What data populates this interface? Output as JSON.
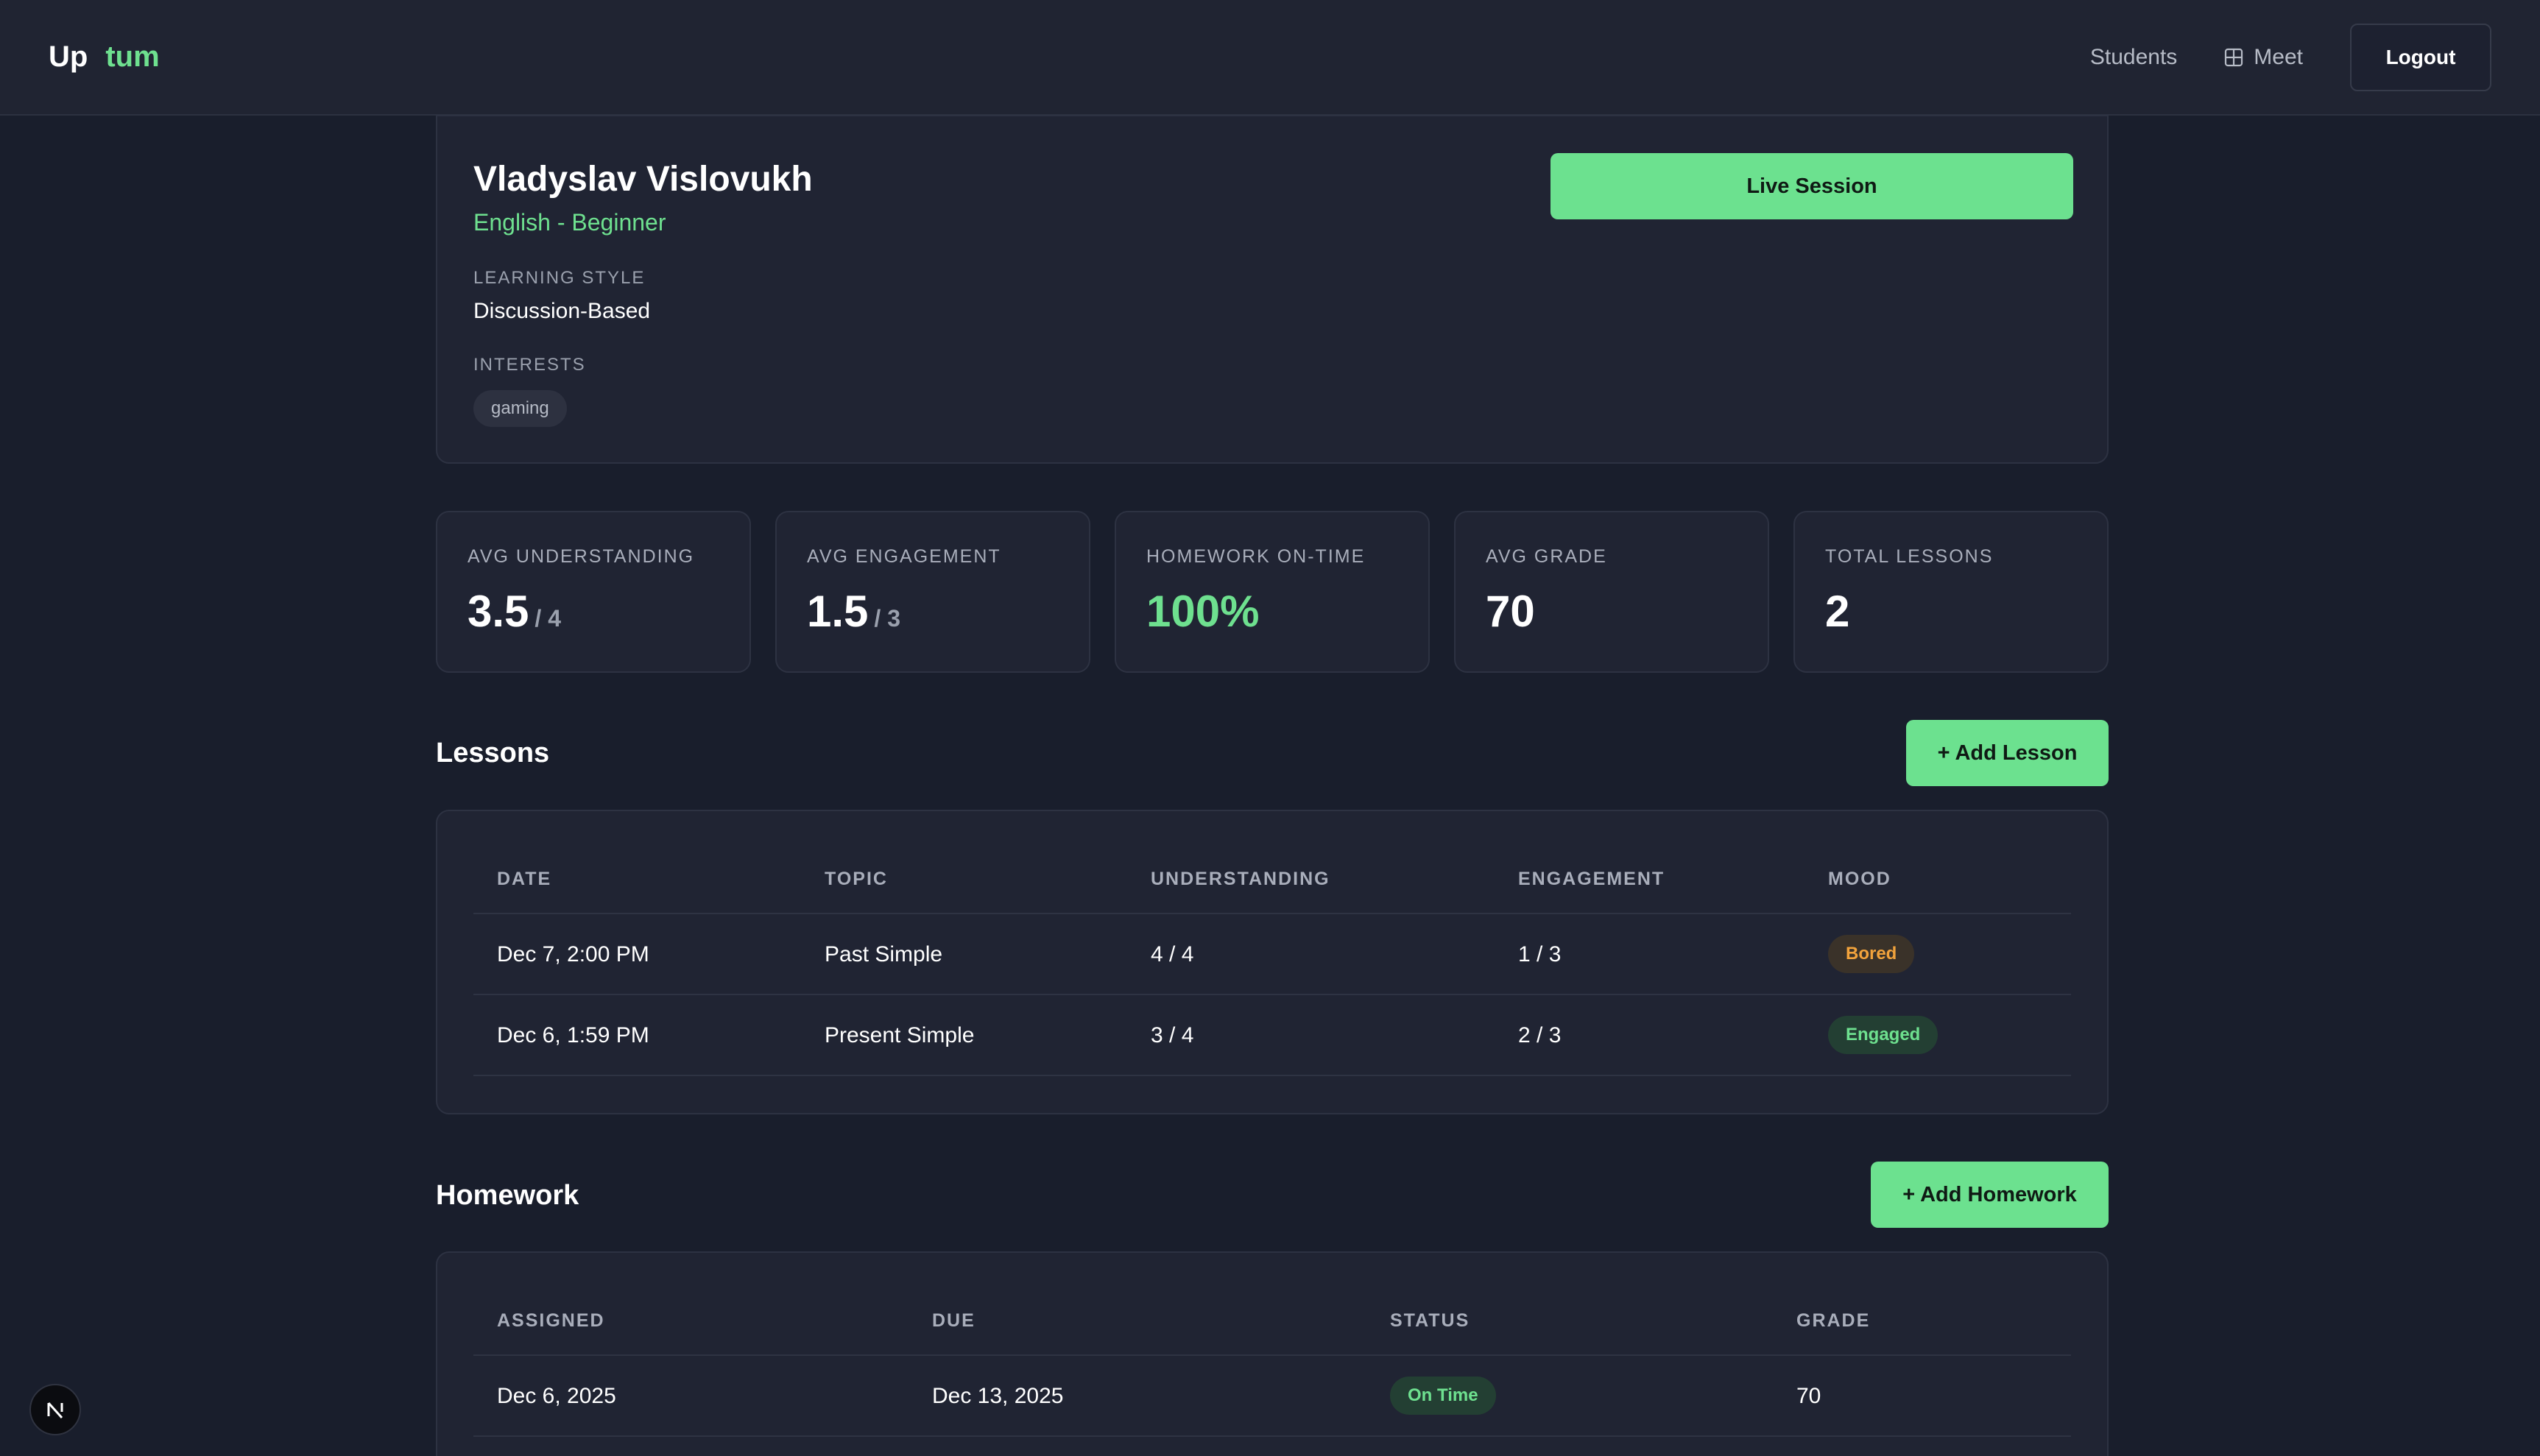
{
  "app": {
    "logo_part1": "Up",
    "logo_part2": "tum"
  },
  "nav": {
    "students": "Students",
    "meet": "Meet",
    "logout": "Logout",
    "meet_icon": "grid-icon"
  },
  "profile": {
    "name": "Vladyslav Vislovukh",
    "course": "English - Beginner",
    "learning_style_label": "LEARNING STYLE",
    "learning_style": "Discussion-Based",
    "interests_label": "INTERESTS",
    "interests": [
      "gaming"
    ],
    "live_session": "Live Session"
  },
  "stats": [
    {
      "label": "AVG UNDERSTANDING",
      "value": "3.5",
      "suffix": "/ 4"
    },
    {
      "label": "AVG ENGAGEMENT",
      "value": "1.5",
      "suffix": "/ 3"
    },
    {
      "label": "HOMEWORK ON-TIME",
      "value": "100%",
      "suffix": ""
    },
    {
      "label": "AVG GRADE",
      "value": "70",
      "suffix": ""
    },
    {
      "label": "TOTAL LESSONS",
      "value": "2",
      "suffix": ""
    }
  ],
  "lessons": {
    "title": "Lessons",
    "add_button": "+ Add Lesson",
    "columns": [
      "DATE",
      "TOPIC",
      "UNDERSTANDING",
      "ENGAGEMENT",
      "MOOD"
    ],
    "rows": [
      {
        "date": "Dec 7, 2:00 PM",
        "topic": "Past Simple",
        "understanding": "4 / 4",
        "engagement": "1 / 3",
        "mood": "Bored"
      },
      {
        "date": "Dec 6, 1:59 PM",
        "topic": "Present Simple",
        "understanding": "3 / 4",
        "engagement": "2 / 3",
        "mood": "Engaged"
      }
    ]
  },
  "homework": {
    "title": "Homework",
    "add_button": "+ Add Homework",
    "columns": [
      "ASSIGNED",
      "DUE",
      "STATUS",
      "GRADE"
    ],
    "rows": [
      {
        "assigned": "Dec 6, 2025",
        "due": "Dec 13, 2025",
        "status": "On Time",
        "grade": "70"
      }
    ]
  },
  "colors": {
    "accent": "#6ce18f",
    "background": "#191e2c",
    "panel": "#202433",
    "mood_bored": "#f2a33c",
    "mood_engaged": "#6ee08f"
  }
}
